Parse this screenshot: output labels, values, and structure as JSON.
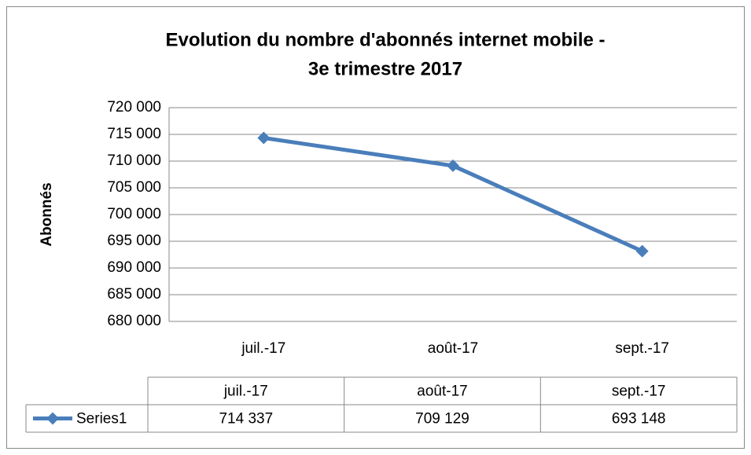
{
  "chart_data": {
    "type": "line",
    "title": [
      "Evolution du nombre d'abonnés internet mobile -",
      "3e trimestre 2017"
    ],
    "y_label": "Abonnés",
    "categories": [
      "juil.-17",
      "août-17",
      "sept.-17"
    ],
    "series": [
      {
        "name": "Series1",
        "color": "#4a7ebb",
        "values": [
          714337,
          709129,
          693148
        ],
        "value_labels": [
          "714 337",
          "709 129",
          "693 148"
        ]
      }
    ],
    "ylim": [
      680000,
      720000
    ],
    "yticks": [
      {
        "value": 680000,
        "label": "680 000"
      },
      {
        "value": 685000,
        "label": "685 000"
      },
      {
        "value": 690000,
        "label": "690 000"
      },
      {
        "value": 695000,
        "label": "695 000"
      },
      {
        "value": 700000,
        "label": "700 000"
      },
      {
        "value": 705000,
        "label": "705 000"
      },
      {
        "value": 710000,
        "label": "710 000"
      },
      {
        "value": 715000,
        "label": "715 000"
      },
      {
        "value": 720000,
        "label": "720 000"
      }
    ],
    "grid": true,
    "data_table": true
  }
}
